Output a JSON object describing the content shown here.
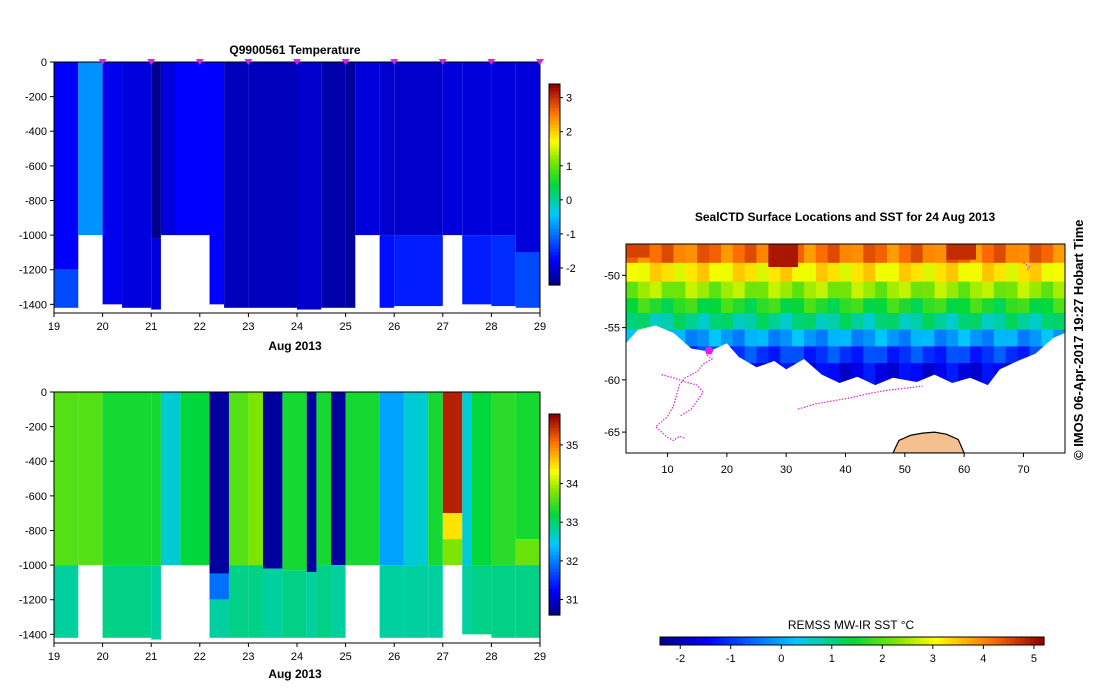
{
  "colors": {
    "marker": "#e020e0",
    "land": "#f4c090",
    "coast": "#000000"
  },
  "chart_data": [
    {
      "type": "heatmap",
      "title": "Q9900561  Temperature",
      "xlabel": "Aug 2013",
      "x_ticks": [
        "19",
        "20",
        "21",
        "22",
        "23",
        "24",
        "25",
        "26",
        "27",
        "28",
        "29"
      ],
      "xlim": [
        19,
        29
      ],
      "y_ticks": [
        "0",
        "-200",
        "-400",
        "-600",
        "-800",
        "-1000",
        "-1200",
        "-1400"
      ],
      "ylim": [
        -1450,
        0
      ],
      "colorbar": {
        "ticks": [
          "3",
          "2",
          "1",
          "0",
          "-1",
          "-2"
        ],
        "range": [
          -2.5,
          3.4
        ]
      },
      "profile_markers": [
        20,
        21,
        22,
        23,
        24,
        25,
        26,
        27,
        28,
        29
      ],
      "profiles": [
        {
          "x0": 19.0,
          "x1": 19.5,
          "segments": [
            [
              0,
              -1200,
              -1.8
            ],
            [
              -1200,
              -1420,
              -1.3
            ]
          ]
        },
        {
          "x0": 19.5,
          "x1": 20.0,
          "segments": [
            [
              0,
              -1000,
              -0.8
            ]
          ]
        },
        {
          "x0": 20.0,
          "x1": 20.4,
          "segments": [
            [
              0,
              -1400,
              -1.9
            ]
          ]
        },
        {
          "x0": 20.4,
          "x1": 21.0,
          "segments": [
            [
              0,
              -1420,
              -2.0
            ]
          ]
        },
        {
          "x0": 21.0,
          "x1": 21.2,
          "segments": [
            [
              0,
              -1020,
              -2.6
            ],
            [
              -1020,
              -1430,
              -2.0
            ]
          ]
        },
        {
          "x0": 21.2,
          "x1": 21.5,
          "segments": [
            [
              0,
              -1000,
              -2.0
            ]
          ]
        },
        {
          "x0": 21.5,
          "x1": 22.2,
          "segments": [
            [
              0,
              -1000,
              -1.8
            ]
          ]
        },
        {
          "x0": 22.2,
          "x1": 22.5,
          "segments": [
            [
              0,
              -1400,
              -1.8
            ]
          ]
        },
        {
          "x0": 22.5,
          "x1": 23.0,
          "segments": [
            [
              0,
              -1420,
              -2.2
            ]
          ]
        },
        {
          "x0": 23.0,
          "x1": 24.0,
          "segments": [
            [
              0,
              -1420,
              -2.2
            ]
          ]
        },
        {
          "x0": 24.0,
          "x1": 24.5,
          "segments": [
            [
              0,
              -1430,
              -2.1
            ]
          ]
        },
        {
          "x0": 24.5,
          "x1": 25.0,
          "segments": [
            [
              0,
              -1420,
              -2.3
            ]
          ]
        },
        {
          "x0": 25.0,
          "x1": 25.2,
          "segments": [
            [
              0,
              -1420,
              -2.4
            ]
          ]
        },
        {
          "x0": 25.2,
          "x1": 25.7,
          "segments": [
            [
              0,
              -1000,
              -2.0
            ]
          ]
        },
        {
          "x0": 25.7,
          "x1": 26.0,
          "segments": [
            [
              0,
              -1000,
              -2.1
            ],
            [
              -1000,
              -1420,
              -1.7
            ]
          ]
        },
        {
          "x0": 26.0,
          "x1": 27.0,
          "segments": [
            [
              0,
              -1000,
              -2.1
            ],
            [
              -1000,
              -1410,
              -1.6
            ]
          ]
        },
        {
          "x0": 27.0,
          "x1": 27.4,
          "segments": [
            [
              0,
              -1000,
              -2.0
            ]
          ]
        },
        {
          "x0": 27.4,
          "x1": 28.0,
          "segments": [
            [
              0,
              -1000,
              -2.0
            ],
            [
              -1000,
              -1400,
              -1.6
            ]
          ]
        },
        {
          "x0": 28.0,
          "x1": 28.5,
          "segments": [
            [
              0,
              -1000,
              -2.0
            ],
            [
              -1000,
              -1410,
              -1.5
            ]
          ]
        },
        {
          "x0": 28.5,
          "x1": 29.0,
          "segments": [
            [
              0,
              -1100,
              -2.0
            ],
            [
              -1100,
              -1420,
              -1.3
            ]
          ]
        }
      ],
      "gaps": [
        [
          19.5,
          20.0,
          -1000,
          -1450
        ],
        [
          21.2,
          22.0,
          -1000,
          -1450
        ],
        [
          25.2,
          25.7,
          -1000,
          -1450
        ],
        [
          27.0,
          27.4,
          -1000,
          -1450
        ]
      ]
    },
    {
      "type": "heatmap",
      "title": "",
      "xlabel": "Aug 2013",
      "x_ticks": [
        "19",
        "20",
        "21",
        "22",
        "23",
        "24",
        "25",
        "26",
        "27",
        "28",
        "29"
      ],
      "xlim": [
        19,
        29
      ],
      "y_ticks": [
        "0",
        "-200",
        "-400",
        "-600",
        "-800",
        "-1000",
        "-1200",
        "-1400"
      ],
      "ylim": [
        -1450,
        0
      ],
      "colorbar": {
        "ticks": [
          "35",
          "34",
          "33",
          "32",
          "31"
        ],
        "range": [
          30.6,
          35.8
        ]
      },
      "profiles": [
        {
          "x0": 19.0,
          "x1": 19.5,
          "segments": [
            [
              0,
              -1000,
              33.6
            ],
            [
              -1000,
              -1420,
              32.8
            ]
          ]
        },
        {
          "x0": 19.5,
          "x1": 20.0,
          "segments": [
            [
              0,
              -1000,
              33.6
            ]
          ]
        },
        {
          "x0": 20.0,
          "x1": 21.0,
          "segments": [
            [
              0,
              -1000,
              33.3
            ],
            [
              -1000,
              -1420,
              32.9
            ]
          ]
        },
        {
          "x0": 21.0,
          "x1": 21.2,
          "segments": [
            [
              0,
              -1000,
              33.3
            ],
            [
              -1000,
              -1430,
              32.8
            ]
          ]
        },
        {
          "x0": 21.2,
          "x1": 21.6,
          "segments": [
            [
              0,
              -1000,
              32.6
            ]
          ]
        },
        {
          "x0": 21.6,
          "x1": 22.2,
          "segments": [
            [
              0,
              -1000,
              33.2
            ]
          ]
        },
        {
          "x0": 22.2,
          "x1": 22.6,
          "segments": [
            [
              0,
              -1050,
              30.7
            ],
            [
              -1050,
              -1200,
              31.9
            ],
            [
              -1200,
              -1420,
              32.8
            ]
          ]
        },
        {
          "x0": 22.6,
          "x1": 23.0,
          "segments": [
            [
              0,
              -1000,
              33.6
            ],
            [
              -1000,
              -1420,
              32.9
            ]
          ]
        },
        {
          "x0": 23.0,
          "x1": 23.3,
          "segments": [
            [
              0,
              -1000,
              33.8
            ],
            [
              -1000,
              -1420,
              32.9
            ]
          ]
        },
        {
          "x0": 23.3,
          "x1": 23.7,
          "segments": [
            [
              0,
              -1020,
              30.7
            ],
            [
              -1020,
              -1420,
              32.8
            ]
          ]
        },
        {
          "x0": 23.7,
          "x1": 24.2,
          "segments": [
            [
              0,
              -1030,
              33.3
            ],
            [
              -1030,
              -1420,
              32.9
            ]
          ]
        },
        {
          "x0": 24.2,
          "x1": 24.4,
          "segments": [
            [
              0,
              -1040,
              30.7
            ],
            [
              -1040,
              -1420,
              32.8
            ]
          ]
        },
        {
          "x0": 24.4,
          "x1": 24.7,
          "segments": [
            [
              0,
              -1000,
              33.3
            ],
            [
              -1000,
              -1420,
              32.9
            ]
          ]
        },
        {
          "x0": 24.7,
          "x1": 25.0,
          "segments": [
            [
              0,
              -1000,
              30.7
            ],
            [
              -1000,
              -1420,
              32.8
            ]
          ]
        },
        {
          "x0": 25.0,
          "x1": 25.7,
          "segments": [
            [
              0,
              -1000,
              33.3
            ]
          ]
        },
        {
          "x0": 25.7,
          "x1": 26.2,
          "segments": [
            [
              0,
              -1000,
              32.2
            ],
            [
              -1000,
              -1420,
              32.8
            ]
          ]
        },
        {
          "x0": 26.2,
          "x1": 26.7,
          "segments": [
            [
              0,
              -1000,
              32.6
            ],
            [
              -1000,
              -1420,
              32.8
            ]
          ]
        },
        {
          "x0": 26.7,
          "x1": 27.0,
          "segments": [
            [
              0,
              -1000,
              33.3
            ],
            [
              -1000,
              -1420,
              32.8
            ]
          ]
        },
        {
          "x0": 27.0,
          "x1": 27.4,
          "segments": [
            [
              0,
              -700,
              35.6
            ],
            [
              -700,
              -850,
              34.5
            ],
            [
              -850,
              -1000,
              33.8
            ]
          ]
        },
        {
          "x0": 27.4,
          "x1": 27.6,
          "segments": [
            [
              0,
              -1000,
              32.6
            ],
            [
              -1000,
              -1400,
              32.8
            ]
          ]
        },
        {
          "x0": 27.6,
          "x1": 28.0,
          "segments": [
            [
              0,
              -1000,
              33.2
            ],
            [
              -1000,
              -1400,
              32.9
            ]
          ]
        },
        {
          "x0": 28.0,
          "x1": 28.5,
          "segments": [
            [
              0,
              -1000,
              33.4
            ],
            [
              -1000,
              -1420,
              32.9
            ]
          ]
        },
        {
          "x0": 28.5,
          "x1": 29.0,
          "segments": [
            [
              0,
              -850,
              33.3
            ],
            [
              -850,
              -1000,
              33.7
            ],
            [
              -1000,
              -1420,
              32.9
            ]
          ]
        }
      ],
      "gaps": [
        [
          19.5,
          20.0,
          -1000,
          -1450
        ],
        [
          21.2,
          22.0,
          -1000,
          -1450
        ],
        [
          25.2,
          25.7,
          -1000,
          -1450
        ],
        [
          27.0,
          27.4,
          -1000,
          -1450
        ]
      ]
    },
    {
      "type": "heatmap",
      "title": "SealCTD Surface Locations and SST for 24 Aug 2013",
      "x_ticks": [
        "10",
        "20",
        "30",
        "40",
        "50",
        "60",
        "70"
      ],
      "xlim": [
        3,
        77
      ],
      "y_ticks": [
        "-50",
        "-55",
        "-60",
        "-65"
      ],
      "ylim": [
        -67,
        -47
      ],
      "colorbar": {
        "label": "REMSS MW-IR SST °C",
        "ticks": [
          "-2",
          "-1",
          "0",
          "1",
          "2",
          "3",
          "4",
          "5"
        ],
        "range": [
          -2.4,
          5.2
        ]
      },
      "ice_edge": [
        [
          3,
          -56.5
        ],
        [
          5,
          -55.2
        ],
        [
          8,
          -54.8
        ],
        [
          11,
          -55.5
        ],
        [
          14,
          -57
        ],
        [
          17,
          -57.3
        ],
        [
          20,
          -56.5
        ],
        [
          22,
          -57.8
        ],
        [
          25,
          -58.8
        ],
        [
          28,
          -58.2
        ],
        [
          30,
          -59
        ],
        [
          33,
          -58
        ],
        [
          36,
          -59.5
        ],
        [
          39,
          -60.3
        ],
        [
          42,
          -59.7
        ],
        [
          45,
          -60.5
        ],
        [
          48,
          -59.8
        ],
        [
          52,
          -60.2
        ],
        [
          55,
          -59.5
        ],
        [
          58,
          -60.3
        ],
        [
          61,
          -59.8
        ],
        [
          64,
          -60.5
        ],
        [
          66,
          -59
        ],
        [
          69,
          -58.2
        ],
        [
          72,
          -57.5
        ],
        [
          75,
          -56
        ],
        [
          77,
          -55.5
        ]
      ],
      "sst_bands": [
        {
          "lat_top": -47.0,
          "temp": 4.2
        },
        {
          "lat_top": -48.8,
          "temp": 3.2
        },
        {
          "lat_top": -50.6,
          "temp": 2.4
        },
        {
          "lat_top": -52.2,
          "temp": 1.6
        },
        {
          "lat_top": -53.6,
          "temp": 0.9
        },
        {
          "lat_top": -55.2,
          "temp": -0.1
        },
        {
          "lat_top": -56.8,
          "temp": -1.0
        },
        {
          "lat_top": -58.4,
          "temp": -1.6
        }
      ],
      "hot_spots": [
        [
          27,
          32,
          -47,
          -49.2,
          5.0
        ],
        [
          57,
          62,
          -47,
          -48.5,
          4.8
        ],
        [
          3,
          7,
          -47,
          -48.3,
          4.6
        ]
      ],
      "tracks": [
        [
          [
            17,
            -57.2
          ],
          [
            16.5,
            -57.6
          ],
          [
            17.5,
            -58
          ],
          [
            16,
            -58.5
          ],
          [
            15,
            -59.2
          ],
          [
            13,
            -59.8
          ],
          [
            12,
            -60.5
          ],
          [
            11.5,
            -61.5
          ],
          [
            11,
            -62.5
          ],
          [
            10,
            -63.5
          ],
          [
            9,
            -64
          ],
          [
            8,
            -64.5
          ],
          [
            9,
            -65
          ],
          [
            10,
            -65.5
          ],
          [
            11,
            -65.8
          ],
          [
            12,
            -65.4
          ],
          [
            13,
            -65.6
          ]
        ],
        [
          [
            9,
            -59.5
          ],
          [
            11,
            -59.8
          ],
          [
            13,
            -60.2
          ],
          [
            15,
            -60.5
          ],
          [
            16,
            -61.2
          ],
          [
            15,
            -62
          ],
          [
            14,
            -62.8
          ],
          [
            12,
            -63.5
          ]
        ],
        [
          [
            32,
            -62.8
          ],
          [
            35,
            -62.3
          ],
          [
            38,
            -62
          ],
          [
            41,
            -61.7
          ],
          [
            44,
            -61.3
          ],
          [
            47,
            -61
          ],
          [
            50,
            -60.8
          ],
          [
            53,
            -60.6
          ]
        ],
        [
          [
            70,
            -48.8
          ],
          [
            71,
            -49.2
          ],
          [
            70.5,
            -49.6
          ]
        ]
      ],
      "land": [
        [
          48,
          -67
        ],
        [
          49,
          -65.8
        ],
        [
          51,
          -65.3
        ],
        [
          53,
          -65.1
        ],
        [
          55,
          -65.0
        ],
        [
          57,
          -65.2
        ],
        [
          59,
          -65.7
        ],
        [
          60,
          -67
        ]
      ]
    }
  ],
  "labels": {
    "copyright": "© IMOS 06-Apr-2017 19:27 Hobart Time"
  }
}
